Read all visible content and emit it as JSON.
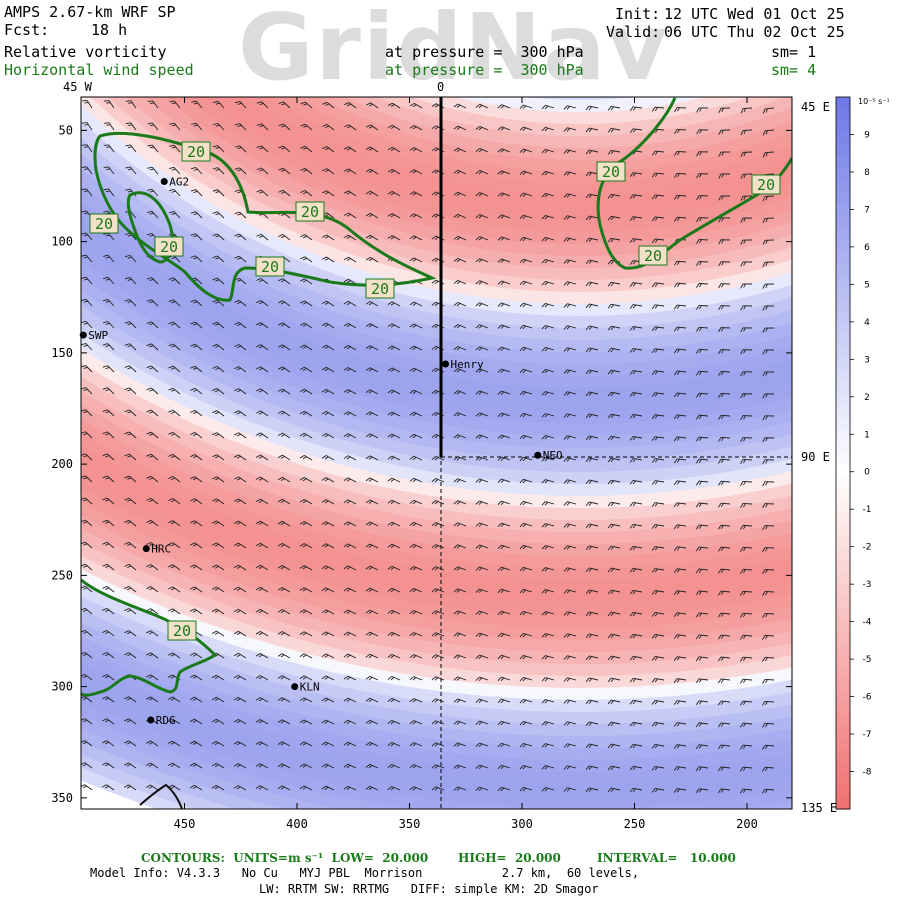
{
  "header": {
    "model_title": "AMPS 2.67-km WRF SP",
    "forecast_label": "Fcst:",
    "forecast_value": "18 h",
    "field_primary": "Relative vorticity",
    "field_secondary": "Horizontal wind speed",
    "pressure_primary": "at pressure =  300 hPa",
    "pressure_secondary": "at pressure =  300 hPa",
    "init_label": "Init:",
    "init_value": "12 UTC Wed 01 Oct 25",
    "valid_label": "Valid:",
    "valid_value": "06 UTC Thu 02 Oct 25",
    "smoothing_primary": "sm= 1",
    "smoothing_secondary": "sm= 4",
    "watermark": "GridNav"
  },
  "map": {
    "top_longitude_labels": [
      "45 W",
      "0"
    ],
    "right_longitude_labels": [
      "45 E",
      "90 E",
      "135 E"
    ],
    "x_tick_labels": [
      "450",
      "400",
      "350",
      "300",
      "250",
      "200"
    ],
    "y_tick_labels": [
      "50",
      "100",
      "150",
      "200",
      "250",
      "300",
      "350"
    ],
    "x_ticks": [
      450,
      400,
      350,
      300,
      250,
      200
    ],
    "y_ticks": [
      50,
      100,
      150,
      200,
      250,
      300,
      350
    ],
    "x_range": [
      496,
      180
    ],
    "y_range": [
      35,
      355
    ],
    "contour_label": "20",
    "stations": [
      {
        "name": "AG2",
        "x": 459,
        "y": 73
      },
      {
        "name": "SWP",
        "x": 495,
        "y": 142
      },
      {
        "name": "Henry",
        "x": 334,
        "y": 155
      },
      {
        "name": "NEO",
        "x": 293,
        "y": 196
      },
      {
        "name": "HRC",
        "x": 467,
        "y": 238
      },
      {
        "name": "KLN",
        "x": 401,
        "y": 300
      },
      {
        "name": "RDG",
        "x": 465,
        "y": 315
      }
    ]
  },
  "colorbar": {
    "unit": "10⁻⁵ s⁻¹",
    "tick_values": [
      9,
      8,
      7,
      6,
      5,
      4,
      3,
      2,
      1,
      0,
      -1,
      -2,
      -3,
      -4,
      -5,
      -6,
      -7,
      -8
    ],
    "tick_labels": [
      "9",
      "8",
      "7",
      "6",
      "5",
      "4",
      "3",
      "2",
      "1",
      "0",
      "-1",
      "-2",
      "-3",
      "-4",
      "-5",
      "-6",
      "-7",
      "-8"
    ],
    "range": [
      -9,
      10
    ],
    "positive_color": "#6e78e6",
    "negative_color": "#f07070",
    "zero_color": "#ffffff"
  },
  "contours_legend": {
    "prefix": "CONTOURS:  UNITS=m s⁻¹  LOW=  20.000",
    "high": "HIGH=  20.000",
    "interval": "INTERVAL=   10.000",
    "color": "#1a7a1a"
  },
  "model_info": {
    "line1": "Model Info: V4.3.3   No Cu   MYJ PBL  Morrison           2.7 km,  60 levels,",
    "line2": "LW: RRTM SW: RRTMG   DIFF: simple KM: 2D Smagor"
  }
}
